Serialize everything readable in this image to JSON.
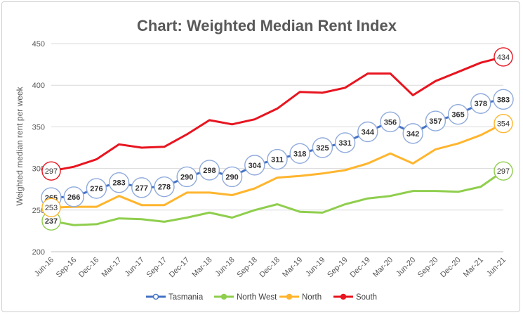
{
  "chart_data": {
    "type": "line",
    "title": "Chart: Weighted Median Rent Index",
    "ylabel": "Weighted median rent per week",
    "xlabel": "",
    "ylim": [
      200,
      450
    ],
    "yticks": [
      200,
      250,
      300,
      350,
      400,
      450
    ],
    "grid": true,
    "legend_position": "bottom",
    "categories": [
      "Jun-16",
      "Sep-16",
      "Dec-16",
      "Mar-17",
      "Jun-17",
      "Sep-17",
      "Dec-17",
      "Mar-18",
      "Jun-18",
      "Sep-18",
      "Dec-18",
      "Mar-19",
      "Jun-19",
      "Sep-19",
      "Dec-19",
      "Mar-20",
      "Jun-20",
      "Sep-20",
      "Dec-20",
      "Mar-21",
      "Jun-21"
    ],
    "series": [
      {
        "name": "Tasmania",
        "color": "#4472c4",
        "values": [
          265,
          266,
          276,
          283,
          277,
          278,
          290,
          298,
          290,
          304,
          311,
          318,
          325,
          331,
          344,
          356,
          342,
          357,
          365,
          378,
          383
        ],
        "labels": "all"
      },
      {
        "name": "North West",
        "color": "#8fce4d",
        "values": [
          237,
          232,
          233,
          240,
          239,
          236,
          241,
          247,
          241,
          250,
          257,
          248,
          247,
          257,
          264,
          267,
          273,
          273,
          272,
          278,
          297
        ],
        "labels": "ends"
      },
      {
        "name": "North",
        "color": "#ffb52e",
        "values": [
          253,
          254,
          254,
          267,
          256,
          256,
          271,
          271,
          268,
          276,
          289,
          291,
          294,
          298,
          306,
          318,
          306,
          323,
          330,
          340,
          354
        ],
        "labels": "ends"
      },
      {
        "name": "South",
        "color": "#e8141f",
        "values": [
          297,
          302,
          311,
          329,
          325,
          326,
          341,
          358,
          353,
          359,
          372,
          392,
          391,
          397,
          414,
          414,
          388,
          405,
          416,
          427,
          434
        ],
        "labels": "ends"
      }
    ]
  }
}
